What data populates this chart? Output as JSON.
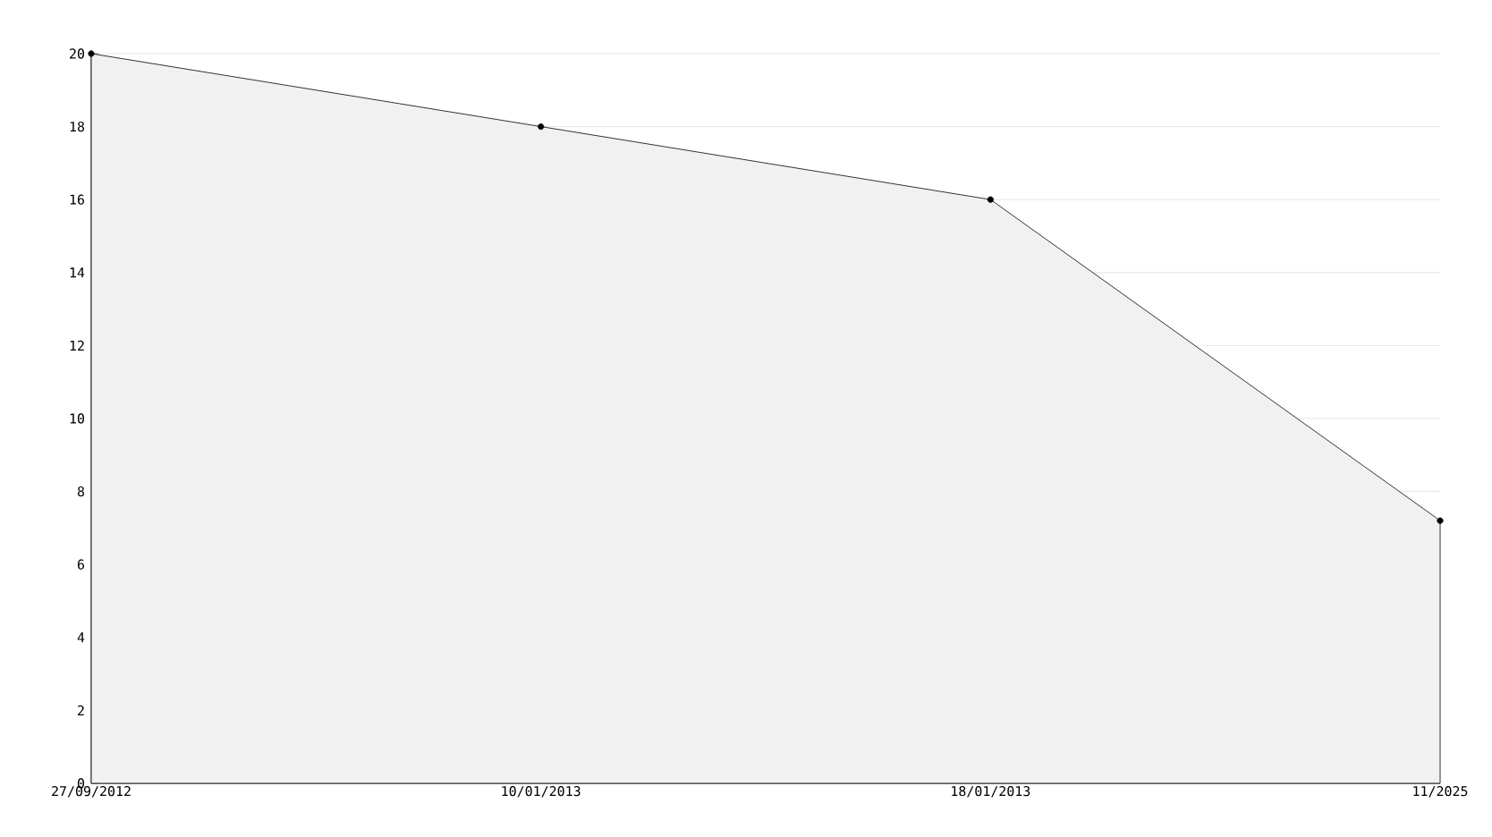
{
  "chart_data": {
    "type": "area",
    "categories": [
      "27/09/2012",
      "10/01/2013",
      "18/01/2013",
      "11/2025"
    ],
    "series": [
      {
        "color": "#f1f1f1",
        "values": [
          20,
          18,
          16,
          7.2
        ]
      }
    ],
    "ylim": [
      0,
      20
    ],
    "yticks": [
      0,
      2,
      4,
      6,
      8,
      10,
      12,
      14,
      16,
      18,
      20
    ],
    "grid": "y",
    "marker": "circle",
    "line_style": "solid"
  }
}
